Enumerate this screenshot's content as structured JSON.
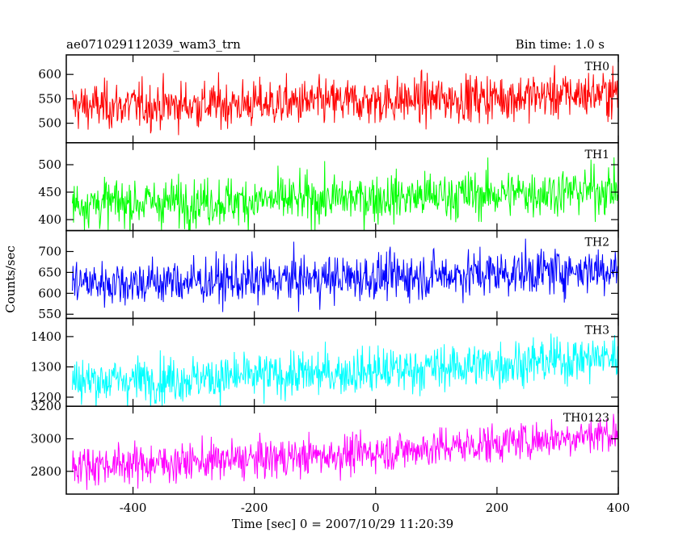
{
  "header": {
    "left_title": "ae071029112039_wam3_trn",
    "right_title": "Bin time: 1.0 s"
  },
  "chart_data": {
    "type": "line",
    "xlabel": "Time [sec] 0 = 2007/10/29 11:20:39",
    "ylabel": "Counts/sec",
    "xlim": [
      -510,
      400
    ],
    "xticks": [
      -400,
      -200,
      0,
      200,
      400
    ],
    "x_start": -500,
    "x_end": 399,
    "bin_time_s": 1.0,
    "panels": [
      {
        "name": "TH0",
        "color": "#ff0000",
        "ylim": [
          460,
          640
        ],
        "yticks": [
          500,
          550,
          600
        ],
        "trend_start": 535,
        "trend_end": 562,
        "noise_sd": 24
      },
      {
        "name": "TH1",
        "color": "#00ff00",
        "ylim": [
          380,
          540
        ],
        "yticks": [
          400,
          450,
          500
        ],
        "trend_start": 430,
        "trend_end": 455,
        "noise_sd": 22
      },
      {
        "name": "TH2",
        "color": "#0000ff",
        "ylim": [
          540,
          750
        ],
        "yticks": [
          550,
          600,
          650,
          700
        ],
        "trend_start": 625,
        "trend_end": 660,
        "noise_sd": 28
      },
      {
        "name": "TH3",
        "color": "#00ffff",
        "ylim": [
          1170,
          1460
        ],
        "yticks": [
          1200,
          1300,
          1400
        ],
        "trend_start": 1255,
        "trend_end": 1335,
        "noise_sd": 38
      },
      {
        "name": "TH0123",
        "color": "#ff00ff",
        "ylim": [
          2660,
          3200
        ],
        "yticks": [
          2800,
          3000,
          3200
        ],
        "trend_start": 2840,
        "trend_end": 3040,
        "noise_sd": 60
      }
    ]
  }
}
